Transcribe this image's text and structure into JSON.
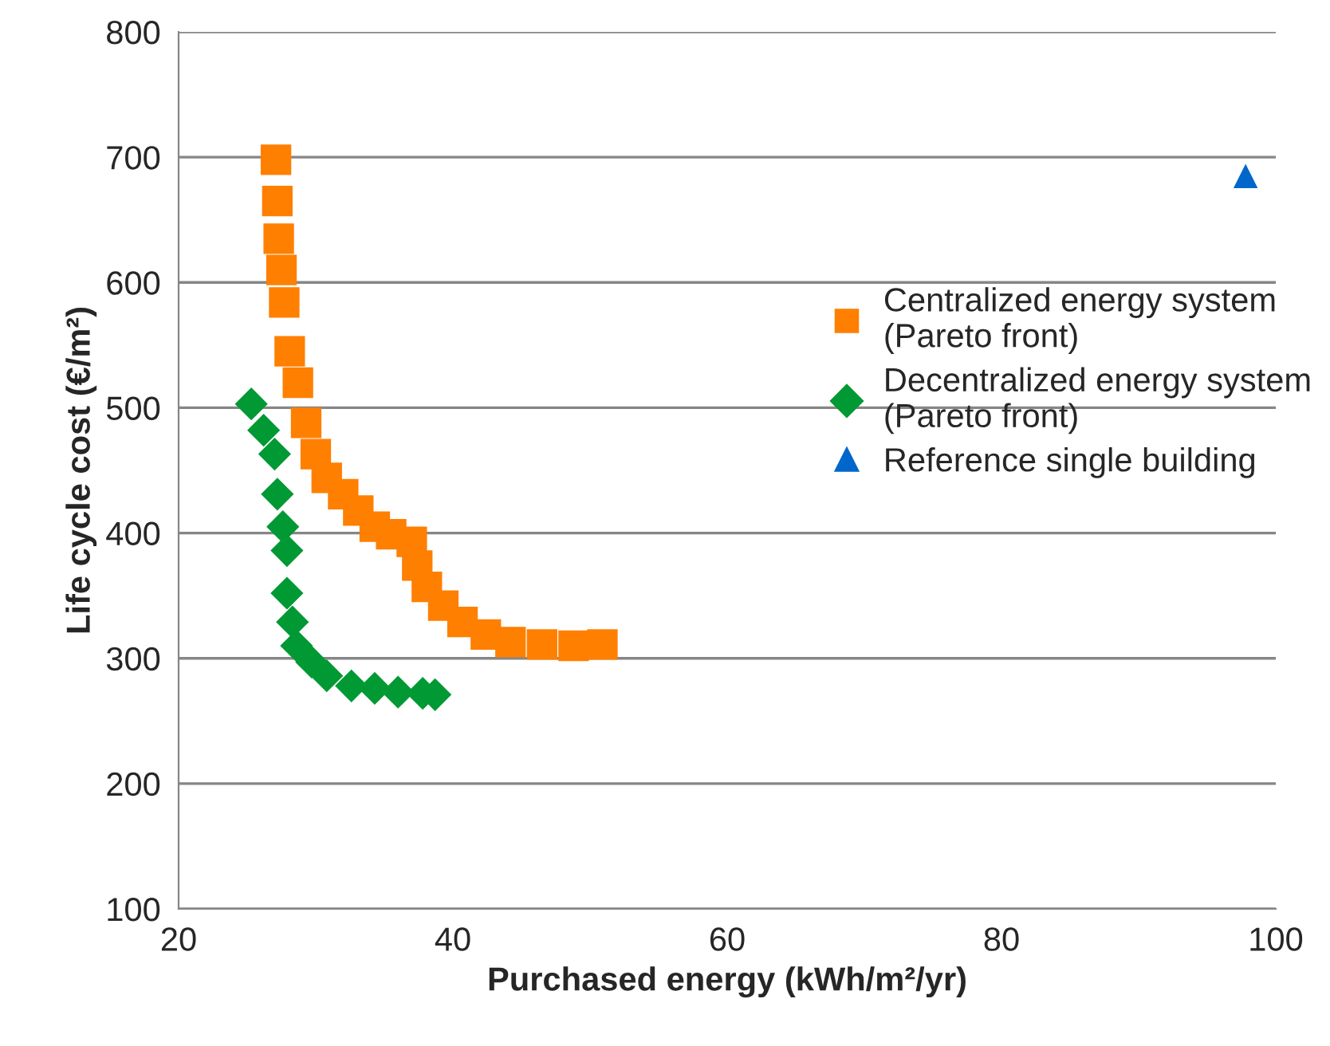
{
  "chart_data": {
    "type": "scatter",
    "xlabel": "Purchased energy (kWh/m²/yr)",
    "ylabel": "Life cycle cost (€/m²)",
    "xlim": [
      20,
      100
    ],
    "ylim": [
      100,
      800
    ],
    "xticks": [
      20,
      40,
      60,
      80,
      100
    ],
    "yticks": [
      100,
      200,
      300,
      400,
      500,
      600,
      700,
      800
    ],
    "grid": "y",
    "legend": "right",
    "series": [
      {
        "name": "Centralized energy system\n(Pareto front)",
        "color": "#ff7f00",
        "marker": "square",
        "x": [
          27.1,
          27.2,
          27.3,
          27.5,
          27.7,
          28.1,
          28.7,
          29.3,
          30.0,
          30.8,
          32.0,
          33.1,
          34.3,
          35.5,
          37.0,
          37.4,
          38.1,
          39.3,
          40.7,
          42.4,
          44.2,
          46.5,
          48.8,
          50.9
        ],
        "values": [
          698,
          665,
          635,
          610,
          584,
          545,
          520,
          488,
          463,
          444,
          431,
          418,
          405,
          399,
          393,
          374,
          357,
          342,
          329,
          319,
          313,
          311,
          310,
          311
        ]
      },
      {
        "name": "Decentralized energy system\n(Pareto front)",
        "color": "#009933",
        "marker": "diamond",
        "x": [
          25.3,
          26.2,
          27.0,
          27.2,
          27.6,
          27.9,
          27.9,
          28.3,
          28.6,
          29.7,
          30.8,
          32.6,
          34.3,
          36.0,
          37.8,
          38.7
        ],
        "values": [
          503,
          482,
          463,
          431,
          405,
          386,
          352,
          329,
          310,
          297,
          286,
          278,
          276,
          273,
          272,
          271
        ]
      },
      {
        "name": "Reference single building",
        "color": "#0066cc",
        "marker": "triangle",
        "x": [
          97.8
        ],
        "values": [
          685
        ]
      }
    ]
  }
}
